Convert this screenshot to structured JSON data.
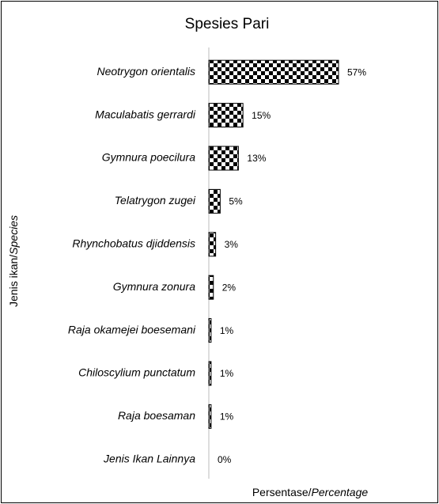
{
  "chart_data": {
    "type": "bar",
    "orientation": "horizontal",
    "title": "Spesies Pari",
    "categories": [
      "Neotrygon orientalis",
      "Maculabatis gerrardi",
      "Gymnura poecilura",
      "Telatrygon zugei",
      "Rhynchobatus djiddensis",
      "Gymnura zonura",
      "Raja okamejei boesemani",
      "Chiloscylium punctatum",
      "Raja boesaman",
      "Jenis Ikan Lainnya"
    ],
    "values": [
      57,
      15,
      13,
      5,
      3,
      2,
      1,
      1,
      1,
      0
    ],
    "value_labels": [
      "57%",
      "15%",
      "13%",
      "5%",
      "3%",
      "2%",
      "1%",
      "1%",
      "1%",
      "0%"
    ],
    "color": "#000000",
    "xlabel": [
      "Persentase/",
      "Percentage"
    ],
    "ylabel": [
      "Jenis ikan/",
      "Species"
    ]
  }
}
